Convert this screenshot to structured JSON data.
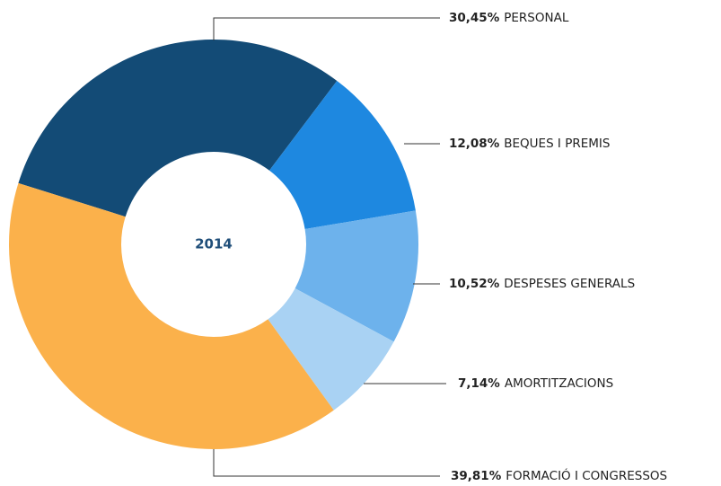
{
  "chart_data": {
    "type": "donut",
    "center_label": "2014",
    "categories": [
      "PERSONAL",
      "BEQUES I PREMIS",
      "DESPESES GENERALS",
      "AMORTITZACIONS",
      "FORMACIÓ I CONGRESSOS"
    ],
    "values": [
      30.45,
      12.08,
      10.52,
      7.14,
      39.81
    ],
    "value_labels": [
      "30,45%",
      "12,08%",
      "10,52%",
      "7,14%",
      "39,81%"
    ],
    "colors": [
      "#134b76",
      "#1e88e0",
      "#6db2ec",
      "#a9d2f3",
      "#fbb14b"
    ]
  }
}
